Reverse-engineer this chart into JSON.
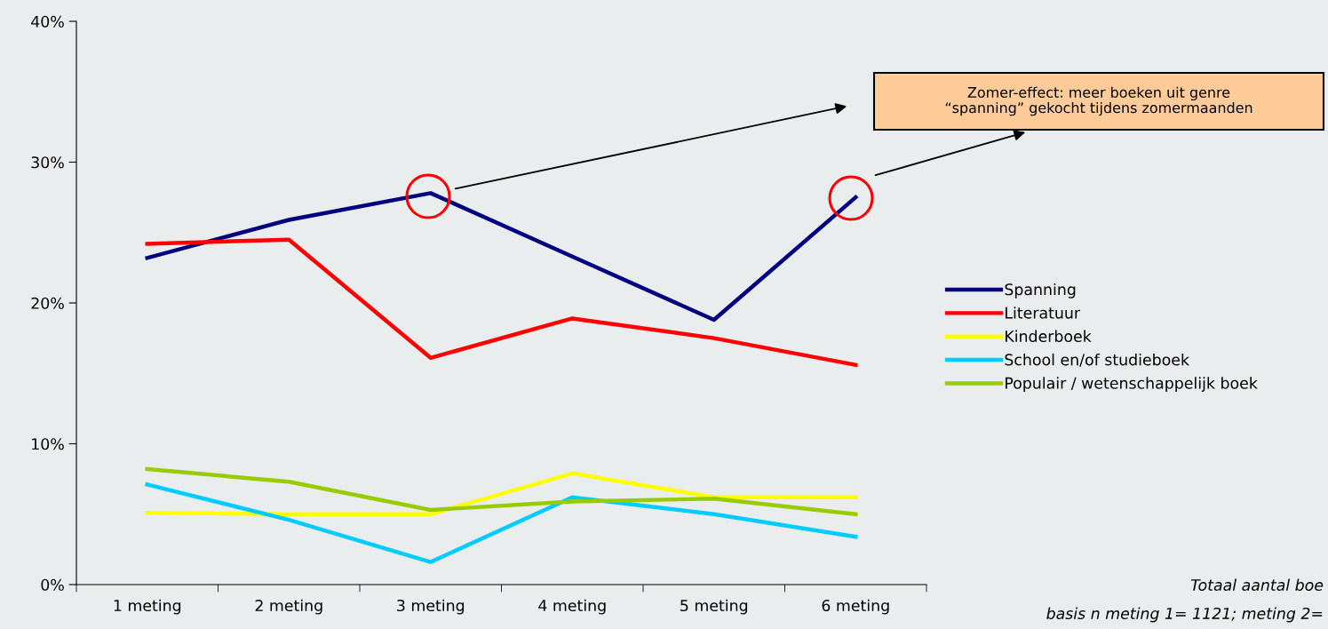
{
  "chart_data": {
    "type": "line",
    "categories": [
      "1 meting",
      "2 meting",
      "3 meting",
      "4 meting",
      "5 meting",
      "6 meting"
    ],
    "series": [
      {
        "name": "Spanning",
        "color": "#000080",
        "values": [
          23.2,
          25.9,
          27.8,
          23.3,
          18.8,
          27.5
        ]
      },
      {
        "name": "Literatuur",
        "color": "#ff0000",
        "values": [
          24.2,
          24.5,
          16.1,
          18.9,
          17.5,
          15.6
        ]
      },
      {
        "name": "Kinderboek",
        "color": "#ffff00",
        "values": [
          5.1,
          5.0,
          5.0,
          7.9,
          6.2,
          6.2
        ]
      },
      {
        "name": "School en/of studieboek",
        "color": "#00ccff",
        "values": [
          7.1,
          4.6,
          1.6,
          6.2,
          5.0,
          3.4
        ]
      },
      {
        "name": "Populair / wetenschappelijk boek",
        "color": "#99cc00",
        "values": [
          8.2,
          7.3,
          5.3,
          5.9,
          6.1,
          5.0
        ]
      }
    ],
    "ylim": [
      0,
      40
    ],
    "yticks": [
      {
        "value": 0,
        "label": "0%"
      },
      {
        "value": 10,
        "label": "10%"
      },
      {
        "value": 20,
        "label": "20%"
      },
      {
        "value": 30,
        "label": "30%"
      },
      {
        "value": 40,
        "label": "40%"
      }
    ],
    "grid": false,
    "legend": "right",
    "marker": "none",
    "line_style": "solid",
    "annotations": [
      "Zomer-effect: meer boeken uit genre\n“spanning” gekocht tijdens zomermaanden",
      "Totaal aantal boe",
      "basis n meting 1= 1121; meting 2="
    ]
  }
}
